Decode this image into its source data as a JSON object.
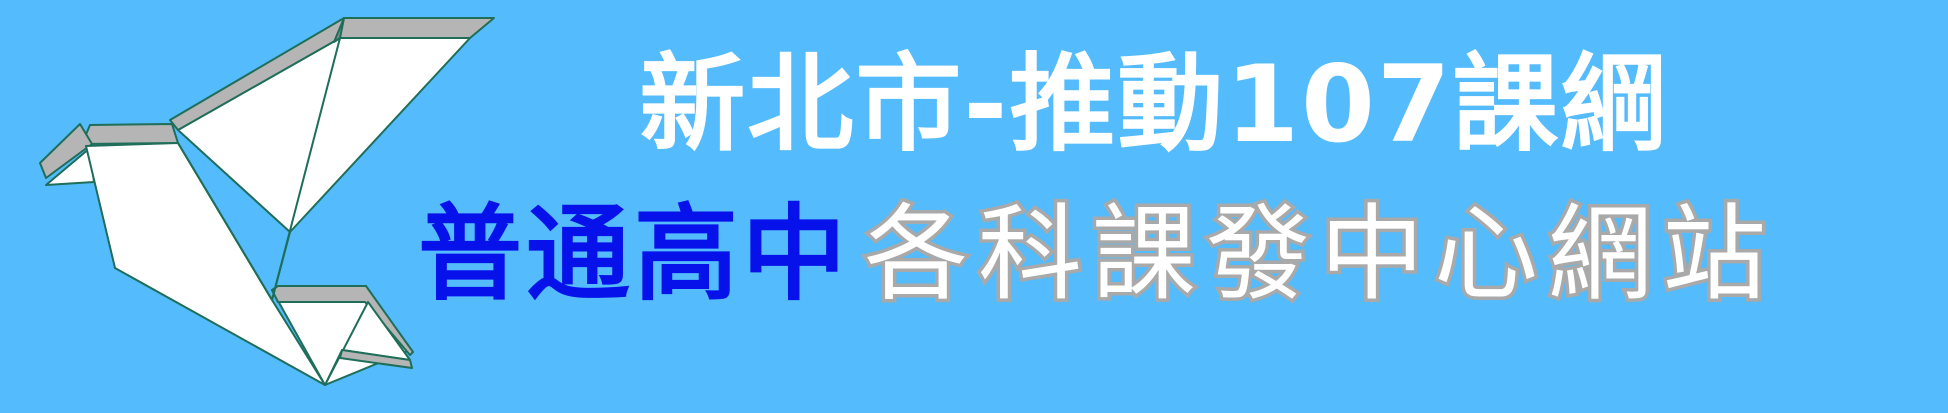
{
  "banner": {
    "line1": "新北市-推動107課綱",
    "line2_highlight": "普通高中",
    "line2_rest": "各科課發中心網站"
  },
  "colors": {
    "background": "#54bbfc",
    "highlight_text": "#0712ea",
    "outline_text_stroke": "#a9a9a9",
    "bird_fill": "#ffffff",
    "bird_fold": "#b5b5b5",
    "bird_edge": "#1f6e5a"
  },
  "logo": {
    "icon": "origami-bird-icon"
  }
}
